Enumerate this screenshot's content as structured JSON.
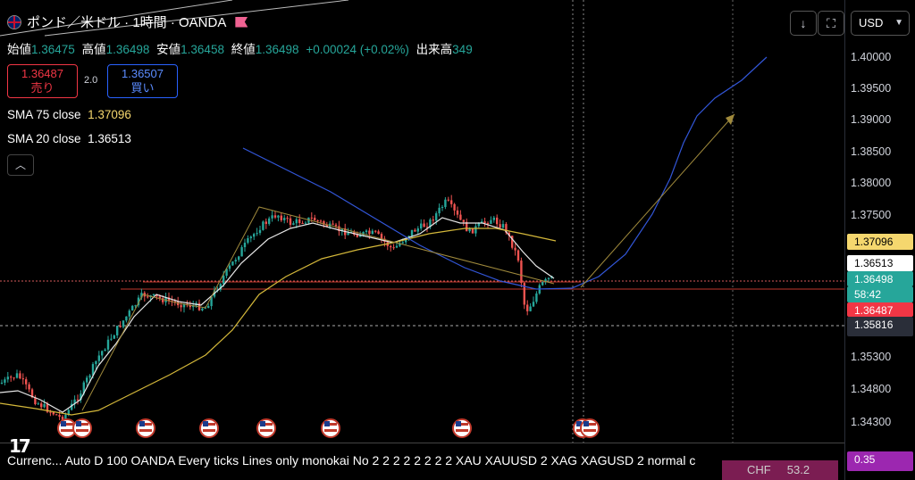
{
  "header": {
    "symbol_title": "ポンド／米ドル · 1時間 · OANDA",
    "icon": "uk-flag-icon",
    "ohlc": {
      "open_label": "始値",
      "open": "1.36475",
      "high_label": "高値",
      "high": "1.36498",
      "low_label": "安値",
      "low": "1.36458",
      "close_label": "終値",
      "close": "1.36498",
      "change": "+0.00024 (+0.02%)",
      "volume_label": "出来高",
      "volume": "349"
    }
  },
  "trade": {
    "sell_price": "1.36487",
    "sell_label": "売り",
    "spread": "2.0",
    "buy_price": "1.36507",
    "buy_label": "買い"
  },
  "indicators": [
    {
      "label": "SMA 75 close",
      "value": "1.37096",
      "color": "#f5d76e"
    },
    {
      "label": "SMA 20 close",
      "value": "1.36513",
      "color": "#ffffff"
    }
  ],
  "toolbar": {
    "download_icon": "download-icon",
    "fullscreen_icon": "fullscreen-icon",
    "currency": "USD"
  },
  "price_axis": {
    "ticks": [
      "1.40000",
      "1.39500",
      "1.39000",
      "1.38500",
      "1.38000",
      "1.37500",
      "1.35300",
      "1.34800",
      "1.34300"
    ],
    "labels": [
      {
        "text": "1.37096",
        "bg": "#f5d76e",
        "fg": "#000000"
      },
      {
        "text": "1.36513",
        "bg": "#ffffff",
        "fg": "#000000"
      },
      {
        "text": "1.36498",
        "bg": "#26a69a",
        "fg": "#ffffff"
      },
      {
        "text": "58:42",
        "bg": "#26a69a",
        "fg": "#ffffff"
      },
      {
        "text": "1.36487",
        "bg": "#f23645",
        "fg": "#ffffff"
      },
      {
        "text": "1.35816",
        "bg": "#2a2e39",
        "fg": "#ffffff"
      },
      {
        "text": "0.35",
        "bg": "#9c27b0",
        "fg": "#ffffff"
      }
    ]
  },
  "status_bar": {
    "text": "Currenc...   Auto D 100 OANDA Every ticks Lines only monokai No 2 2 2 2 2 2 2 2 XAU XAUUSD 2 XAG XAGUSD 2 normal c",
    "chf": "CHF",
    "chf_value": "53.2"
  },
  "colors": {
    "up": "#26a69a",
    "down": "#ef5350",
    "sma20": "#e6e6e6",
    "sma75": "#d4b83a",
    "blue": "#3256d8",
    "trend": "#a08a3c"
  }
}
